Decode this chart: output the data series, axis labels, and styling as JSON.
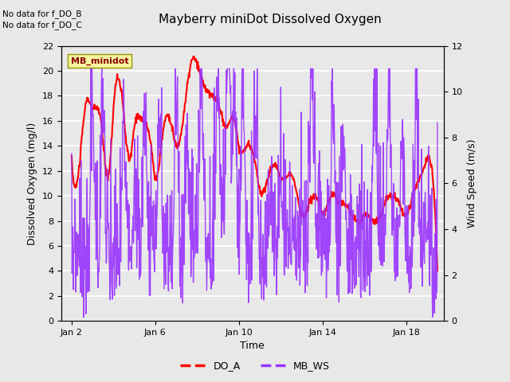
{
  "title": "Mayberry miniDot Dissolved Oxygen",
  "ylabel_left": "Dissolved Oxygen (mg/l)",
  "ylabel_right": "Wind Speed (m/s)",
  "xlabel": "Time",
  "ylim_left": [
    0,
    22
  ],
  "ylim_right": [
    0,
    12
  ],
  "xlim": [
    1.5,
    19.8
  ],
  "no_data_text": [
    "No data for f_DO_B",
    "No data for f_DO_C"
  ],
  "station_label": "MB_minidot",
  "bg_color": "#e8e8e8",
  "legend_entries": [
    "DO_A",
    "MB_WS"
  ],
  "legend_colors": [
    "#ff0000",
    "#9933ff"
  ],
  "xtick_labels": [
    "Jan 2",
    "Jan 6",
    "Jan 10",
    "Jan 14",
    "Jan 18"
  ],
  "xtick_positions": [
    2,
    6,
    10,
    14,
    18
  ],
  "ytick_left": [
    0,
    2,
    4,
    6,
    8,
    10,
    12,
    14,
    16,
    18,
    20,
    22
  ],
  "ytick_right": [
    0,
    2,
    4,
    6,
    8,
    10,
    12
  ],
  "do_color": "#ff0000",
  "ws_color": "#9933ff",
  "do_lw": 1.5,
  "ws_lw": 1.0
}
